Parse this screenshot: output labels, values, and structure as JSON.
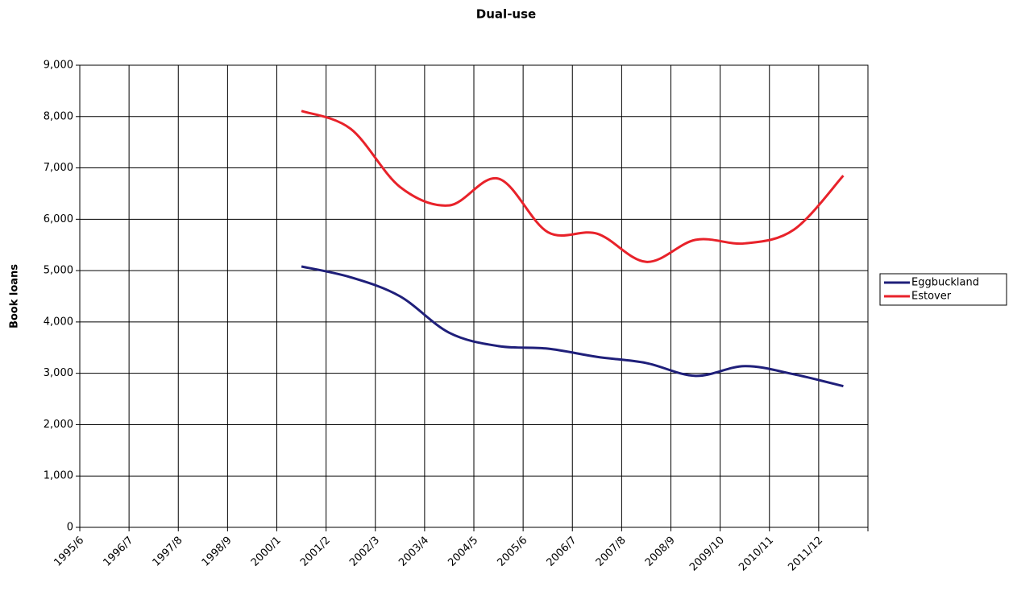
{
  "chart_data": {
    "type": "line",
    "title": "Dual-use",
    "y_label": "Book loans",
    "categories": [
      "1995/6",
      "1996/7",
      "1997/8",
      "1998/9",
      "2000/1",
      "2001/2",
      "2002/3",
      "2003/4",
      "2004/5",
      "2005/6",
      "2006/7",
      "2007/8",
      "2008/9",
      "2009/10",
      "2010/11",
      "2011/12"
    ],
    "series": [
      {
        "name": "Eggbuckland",
        "color": "#1f1f7a",
        "values": [
          null,
          null,
          null,
          null,
          5080,
          4870,
          4500,
          3790,
          3530,
          3480,
          3320,
          3200,
          2950,
          3140,
          2980,
          2750
        ]
      },
      {
        "name": "Estover",
        "color": "#e8222a",
        "values": [
          null,
          null,
          null,
          null,
          8110,
          7760,
          6630,
          6270,
          6790,
          5750,
          5720,
          5170,
          5600,
          5530,
          5800,
          6850
        ]
      }
    ],
    "ylim": [
      0,
      9000
    ],
    "yticks": [
      0,
      {
        "value": 1000,
        "label": "1,000"
      },
      {
        "value": 2000,
        "label": "2,000"
      },
      {
        "value": 3000,
        "label": "3,000"
      },
      {
        "value": 4000,
        "label": "4,000"
      },
      {
        "value": 5000,
        "label": "5,000"
      },
      {
        "value": 6000,
        "label": "6,000"
      },
      {
        "value": 7000,
        "label": "7,000"
      },
      {
        "value": 8000,
        "label": "8,000"
      },
      {
        "value": 9000,
        "label": "9,000"
      }
    ],
    "grid": true,
    "smooth": true,
    "legend_position": "right"
  }
}
